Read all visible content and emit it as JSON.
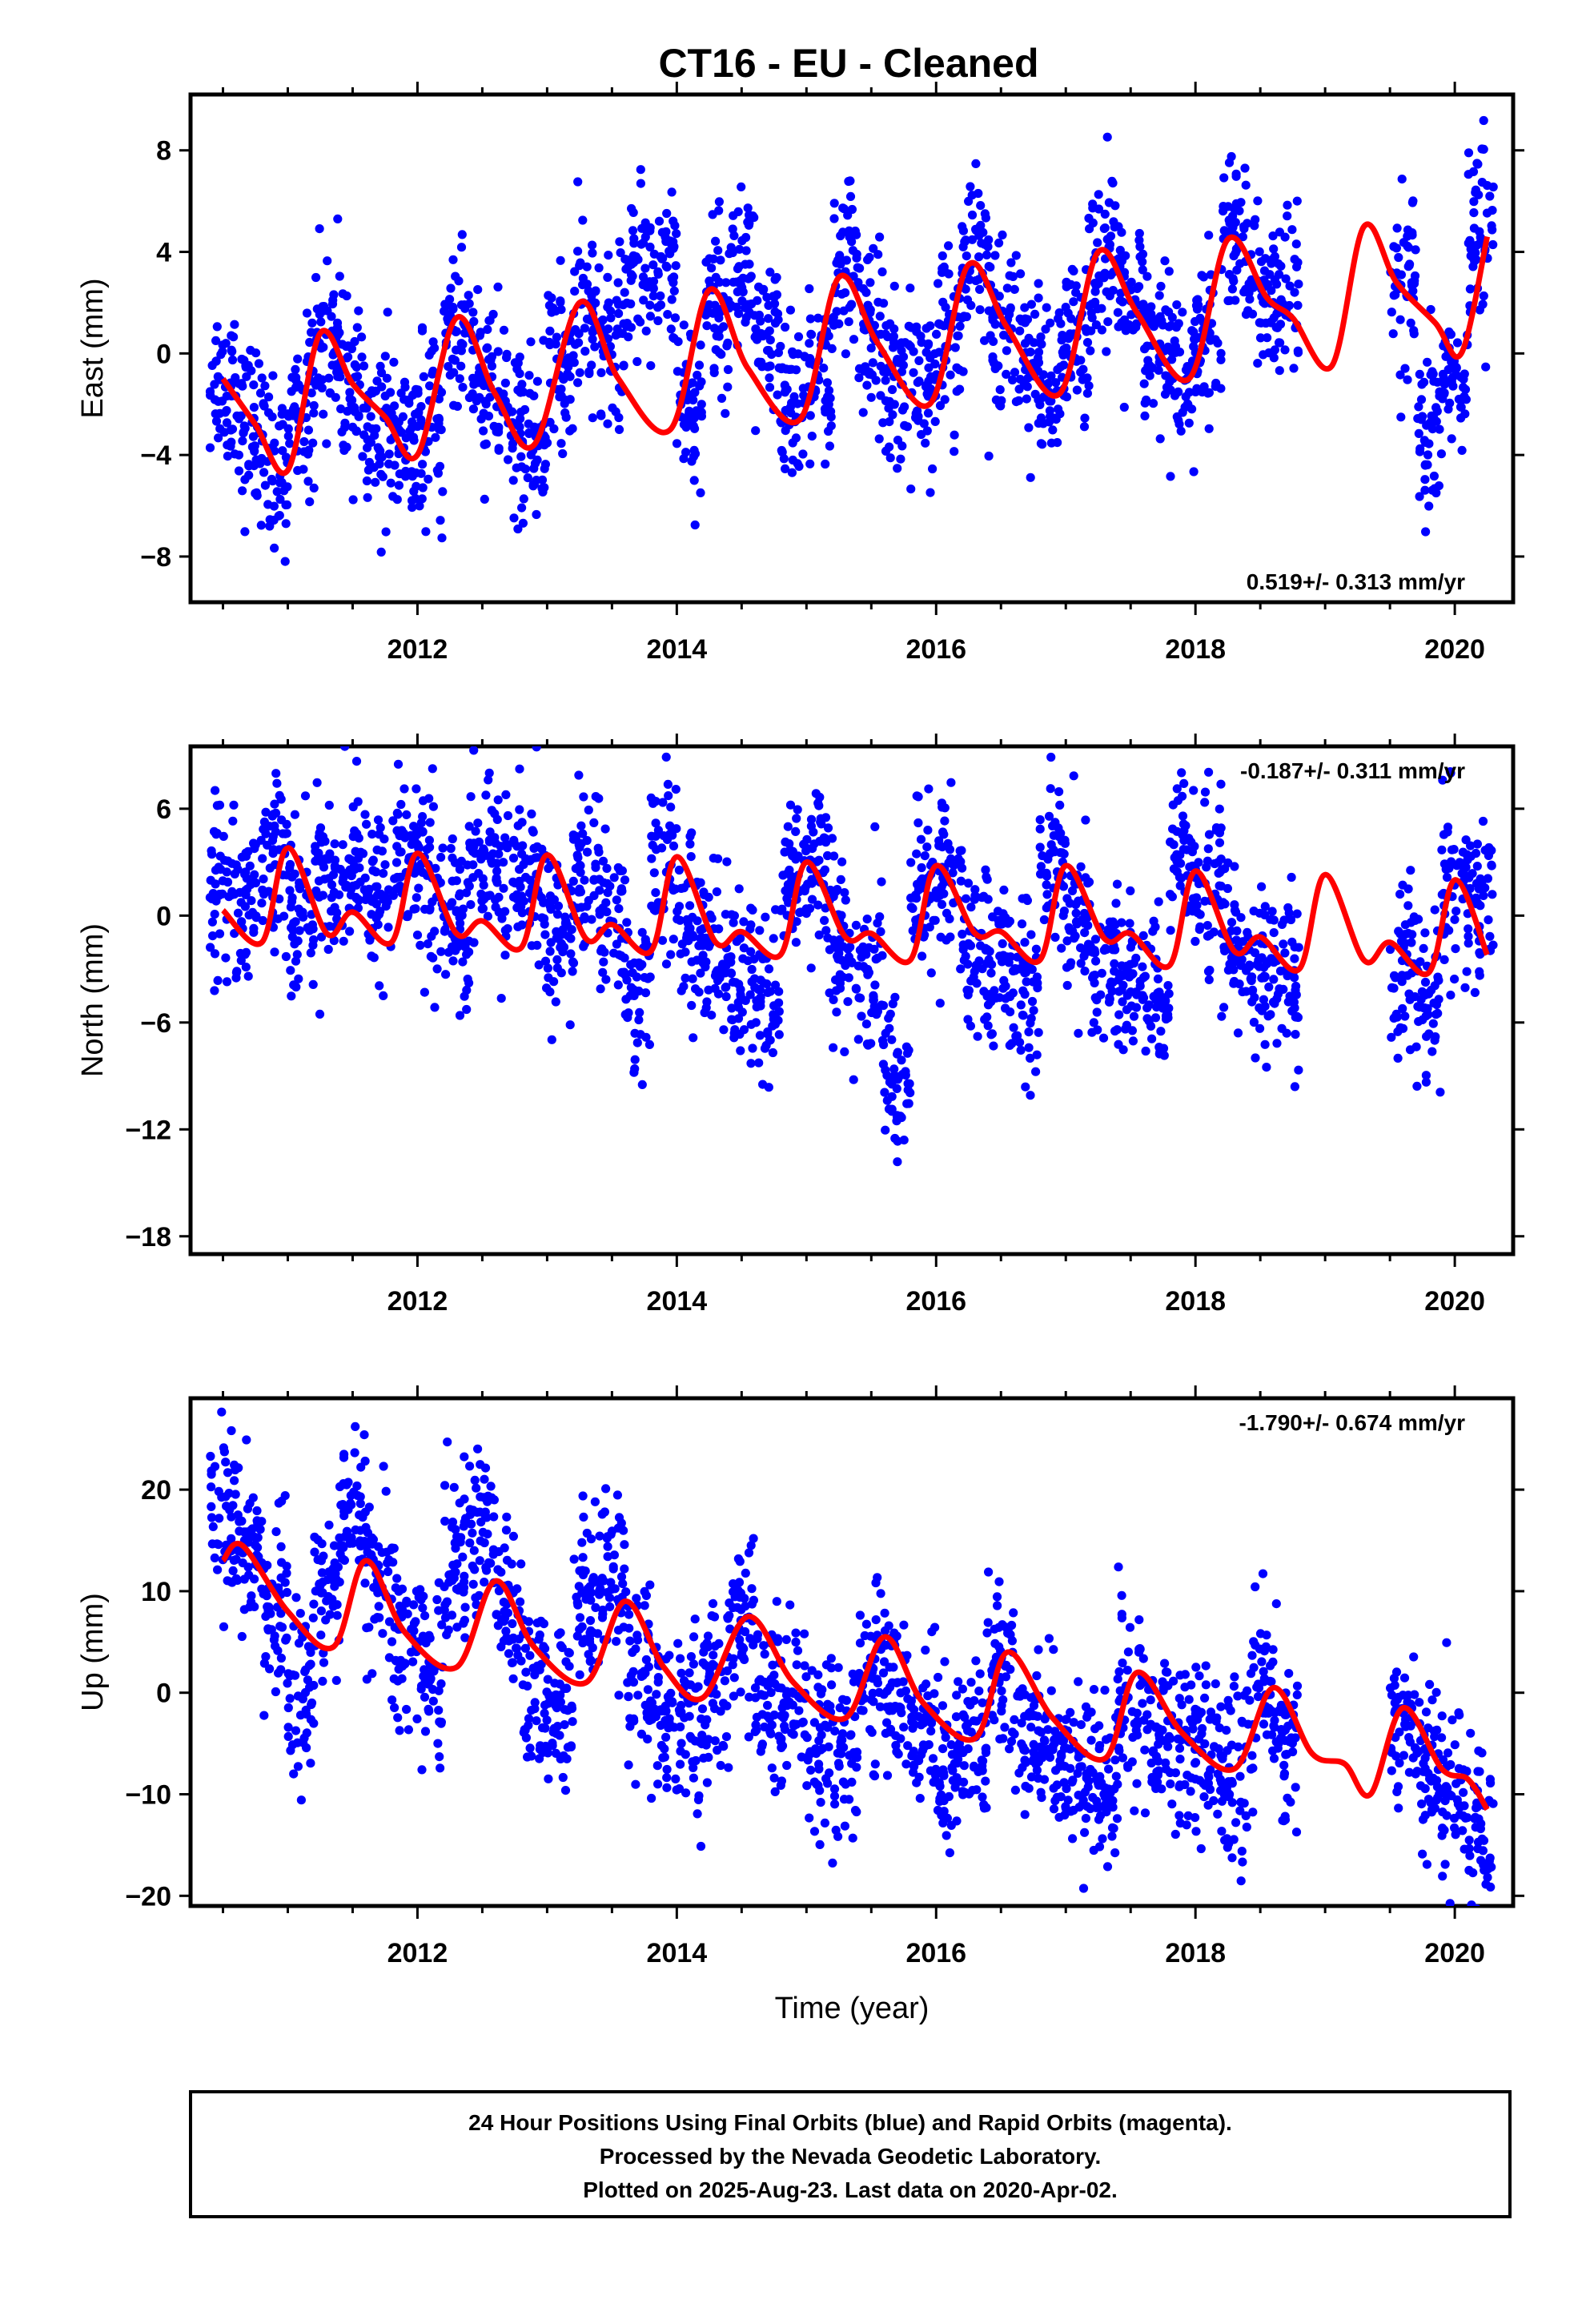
{
  "title": "CT16  - EU - Cleaned",
  "footer": {
    "lines": [
      "24 Hour Positions Using Final Orbits (blue) and Rapid Orbits (magenta).",
      "Processed by the Nevada Geodetic Laboratory.",
      "Plotted on 2025-Aug-23. Last data on 2020-Apr-02."
    ]
  },
  "colors": {
    "points": "#0000ff",
    "model": "#ff0000",
    "frame": "#000000"
  },
  "chart_data": [
    {
      "type": "scatter",
      "ylabel": "East (mm)",
      "xlabel": "",
      "xlim": [
        2010.25,
        2020.45
      ],
      "ylim": [
        -9.8,
        10.2
      ],
      "yticks": [
        8,
        4,
        0,
        -4,
        -8
      ],
      "xticks": [
        2012,
        2014,
        2016,
        2018,
        2020
      ],
      "rate": "0.519+/- 0.313 mm/yr",
      "rate_position": "bottom-right",
      "series": [
        {
          "kind": "points",
          "color": "#0000ff",
          "x": [
            2010.5,
            2010.7,
            2010.9,
            2011.1,
            2011.3,
            2011.5,
            2011.7,
            2011.9,
            2012.1,
            2012.3,
            2012.5,
            2012.7,
            2012.9,
            2013.1,
            2013.3,
            2013.5,
            2013.7,
            2013.9,
            2014.1,
            2014.3,
            2014.5,
            2014.7,
            2014.9,
            2015.1,
            2015.3,
            2015.5,
            2015.7,
            2015.9,
            2016.1,
            2016.3,
            2016.5,
            2016.7,
            2016.9,
            2017.1,
            2017.3,
            2017.5,
            2017.7,
            2017.9,
            2018.1,
            2018.3,
            2018.5,
            2018.7,
            2019.6,
            2019.8,
            2020.0,
            2020.2
          ],
          "y": [
            -1.0,
            -3.0,
            -4.5,
            -2.0,
            0.5,
            -1.5,
            -3.0,
            -4.0,
            -3.0,
            1.0,
            -1.0,
            -2.5,
            -3.5,
            -0.5,
            1.5,
            0.5,
            3.0,
            3.5,
            -2.0,
            2.0,
            3.5,
            0.0,
            -2.0,
            -1.0,
            3.0,
            1.0,
            -1.0,
            -1.5,
            0.5,
            4.0,
            1.5,
            0.0,
            -1.5,
            1.0,
            4.0,
            2.0,
            0.0,
            -0.8,
            0.5,
            4.5,
            2.5,
            1.8,
            2.5,
            -3.5,
            -1.0,
            5.0
          ]
        },
        {
          "kind": "line",
          "color": "#ff0000",
          "x": [
            2010.5,
            2010.75,
            2011.0,
            2011.25,
            2011.5,
            2011.75,
            2012.0,
            2012.3,
            2012.6,
            2012.9,
            2013.25,
            2013.55,
            2013.95,
            2014.25,
            2014.55,
            2014.95,
            2015.25,
            2015.55,
            2015.95,
            2016.25,
            2016.55,
            2016.95,
            2017.25,
            2017.55,
            2017.95,
            2018.25,
            2018.55,
            2018.75,
            2019.05,
            2019.3,
            2019.55,
            2019.85,
            2020.05,
            2020.25
          ],
          "y": [
            -1.0,
            -2.8,
            -4.6,
            0.8,
            -1.2,
            -2.5,
            -4.0,
            1.4,
            -1.6,
            -3.6,
            2.0,
            -1.0,
            -3.0,
            2.5,
            -0.6,
            -2.6,
            3.0,
            0.4,
            -2.0,
            3.5,
            1.0,
            -1.6,
            4.0,
            1.6,
            -1.0,
            4.5,
            2.2,
            1.4,
            -0.5,
            5.0,
            2.8,
            1.2,
            0.0,
            4.6
          ]
        }
      ]
    },
    {
      "type": "scatter",
      "ylabel": "North (mm)",
      "xlabel": "",
      "xlim": [
        2010.25,
        2020.45
      ],
      "ylim": [
        -19,
        9.5
      ],
      "yticks": [
        6,
        0,
        -6,
        -12,
        -18
      ],
      "xticks": [
        2012,
        2014,
        2016,
        2018,
        2020
      ],
      "rate": "-0.187+/- 0.311 mm/yr",
      "rate_position": "top-right",
      "series": [
        {
          "kind": "points",
          "color": "#0000ff",
          "x": [
            2010.5,
            2010.7,
            2010.9,
            2011.1,
            2011.3,
            2011.5,
            2011.7,
            2011.9,
            2012.1,
            2012.3,
            2012.5,
            2012.7,
            2012.9,
            2013.1,
            2013.3,
            2013.5,
            2013.7,
            2013.9,
            2014.1,
            2014.3,
            2014.5,
            2014.7,
            2014.9,
            2015.1,
            2015.3,
            2015.5,
            2015.7,
            2015.9,
            2016.1,
            2016.3,
            2016.5,
            2016.7,
            2016.9,
            2017.1,
            2017.3,
            2017.5,
            2017.7,
            2017.9,
            2018.1,
            2018.3,
            2018.5,
            2018.7,
            2019.6,
            2019.8,
            2020.0,
            2020.2
          ],
          "y": [
            2.0,
            1.0,
            4.0,
            0.0,
            2.5,
            3.0,
            1.0,
            3.5,
            2.0,
            0.0,
            3.5,
            2.0,
            1.0,
            -1.0,
            2.5,
            0.0,
            -4.0,
            3.0,
            -1.0,
            -2.0,
            -4.0,
            -5.0,
            2.0,
            3.0,
            -2.0,
            -4.0,
            -9.0,
            1.0,
            2.5,
            -2.0,
            -3.0,
            -4.0,
            3.0,
            0.0,
            -3.0,
            -4.0,
            -5.0,
            4.0,
            2.0,
            -2.0,
            -3.0,
            -4.0,
            -3.0,
            -5.0,
            2.0,
            1.0
          ]
        },
        {
          "kind": "line",
          "color": "#ff0000",
          "x": [
            2010.5,
            2010.8,
            2011.0,
            2011.3,
            2011.5,
            2011.8,
            2012.0,
            2012.3,
            2012.5,
            2012.8,
            2013.0,
            2013.3,
            2013.5,
            2013.8,
            2014.0,
            2014.3,
            2014.5,
            2014.8,
            2015.0,
            2015.3,
            2015.5,
            2015.8,
            2016.0,
            2016.3,
            2016.5,
            2016.8,
            2017.0,
            2017.3,
            2017.5,
            2017.8,
            2018.0,
            2018.3,
            2018.5,
            2018.8,
            2019.0,
            2019.3,
            2019.5,
            2019.8,
            2020.0,
            2020.25
          ],
          "y": [
            0.3,
            -1.5,
            3.8,
            -1.0,
            0.2,
            -1.5,
            3.5,
            -1.0,
            -0.3,
            -1.8,
            3.4,
            -1.3,
            -0.5,
            -2.0,
            3.3,
            -1.5,
            -0.9,
            -2.2,
            3.0,
            -1.2,
            -1.0,
            -2.5,
            2.8,
            -1.0,
            -0.9,
            -2.5,
            2.8,
            -1.3,
            -1.0,
            -2.8,
            2.5,
            -2.0,
            -1.2,
            -3.0,
            2.3,
            -2.5,
            -1.5,
            -3.2,
            2.0,
            -2.2
          ]
        }
      ]
    },
    {
      "type": "scatter",
      "ylabel": "Up (mm)",
      "xlabel": "Time (year)",
      "xlim": [
        2010.25,
        2020.45
      ],
      "ylim": [
        -21,
        29
      ],
      "yticks": [
        20,
        10,
        0,
        -10,
        -20
      ],
      "xticks": [
        2012,
        2014,
        2016,
        2018,
        2020
      ],
      "rate": "-1.790+/- 0.674 mm/yr",
      "rate_position": "top-right",
      "series": [
        {
          "kind": "points",
          "color": "#0000ff",
          "x": [
            2010.5,
            2010.7,
            2010.9,
            2011.1,
            2011.3,
            2011.5,
            2011.7,
            2011.9,
            2012.1,
            2012.3,
            2012.5,
            2012.7,
            2012.9,
            2013.1,
            2013.3,
            2013.5,
            2013.7,
            2013.9,
            2014.1,
            2014.3,
            2014.5,
            2014.7,
            2014.9,
            2015.1,
            2015.3,
            2015.5,
            2015.7,
            2015.9,
            2016.1,
            2016.3,
            2016.5,
            2016.7,
            2016.9,
            2017.1,
            2017.3,
            2017.5,
            2017.7,
            2017.9,
            2018.1,
            2018.3,
            2018.5,
            2018.7,
            2019.6,
            2019.8,
            2020.0,
            2020.2
          ],
          "y": [
            18.0,
            14.0,
            8.0,
            0.0,
            10.0,
            18.0,
            12.0,
            5.0,
            2.0,
            13.0,
            16.0,
            8.0,
            0.0,
            -2.0,
            10.0,
            12.0,
            2.0,
            -2.0,
            -3.0,
            0.0,
            6.0,
            0.0,
            -3.0,
            -5.0,
            -6.0,
            2.0,
            0.0,
            -4.0,
            -6.0,
            -5.0,
            2.0,
            -3.0,
            -5.0,
            -8.0,
            -10.0,
            0.0,
            -4.0,
            -6.0,
            -6.0,
            -8.0,
            0.0,
            -5.0,
            -3.0,
            -8.0,
            -10.0,
            -14.0
          ]
        },
        {
          "kind": "line",
          "color": "#ff0000",
          "x": [
            2010.5,
            2010.65,
            2011.0,
            2011.35,
            2011.6,
            2011.9,
            2012.3,
            2012.6,
            2012.9,
            2013.3,
            2013.6,
            2013.9,
            2014.2,
            2014.55,
            2014.9,
            2015.3,
            2015.6,
            2015.9,
            2016.3,
            2016.55,
            2016.9,
            2017.3,
            2017.55,
            2017.9,
            2018.3,
            2018.6,
            2018.9,
            2019.15,
            2019.35,
            2019.6,
            2019.9,
            2020.1,
            2020.25
          ],
          "y": [
            13.0,
            14.5,
            8.0,
            4.5,
            13.0,
            6.0,
            2.5,
            11.0,
            4.5,
            1.0,
            9.0,
            2.5,
            -0.5,
            7.5,
            1.0,
            -2.5,
            5.5,
            -1.0,
            -4.5,
            4.0,
            -2.5,
            -6.5,
            2.0,
            -4.0,
            -7.5,
            0.5,
            -6.0,
            -7.0,
            -10.0,
            -1.5,
            -7.5,
            -8.5,
            -11.5
          ]
        }
      ]
    }
  ]
}
